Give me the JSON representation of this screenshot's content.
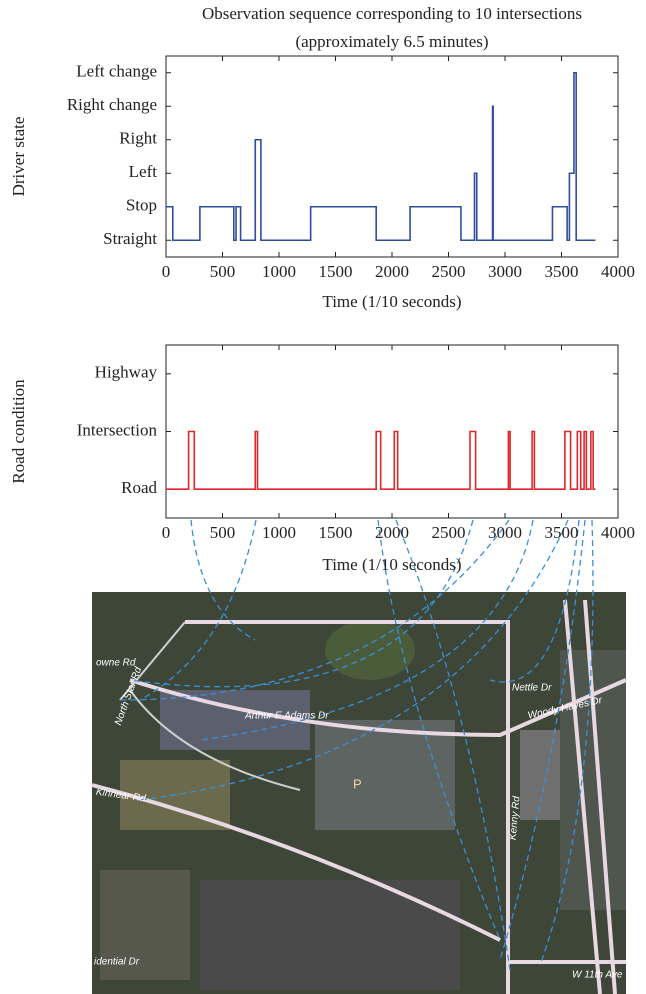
{
  "chart_data": [
    {
      "type": "line",
      "title": "Observation sequence corresponding to 10 intersections (approximately 6.5 minutes)",
      "x_label": "Time (1/10 seconds)",
      "y_label": "Driver state",
      "xlim": [
        0,
        4000
      ],
      "xticks": [
        0,
        500,
        1000,
        1500,
        2000,
        2500,
        3000,
        3500,
        4000
      ],
      "ylim": [
        0.5,
        6.5
      ],
      "yticks": [
        {
          "value": 1,
          "label": "Straight"
        },
        {
          "value": 2,
          "label": "Stop"
        },
        {
          "value": 3,
          "label": "Left"
        },
        {
          "value": 4,
          "label": "Right"
        },
        {
          "value": 5,
          "label": "Right change"
        },
        {
          "value": 6,
          "label": "Left change"
        }
      ],
      "series": [
        {
          "color": "#2e4d9e",
          "x": [
            0,
            60,
            60,
            300,
            300,
            600,
            600,
            620,
            620,
            660,
            660,
            790,
            790,
            840,
            840,
            1280,
            1280,
            1860,
            1860,
            2160,
            2160,
            2610,
            2610,
            2730,
            2730,
            2750,
            2750,
            2890,
            2890,
            2895,
            2895,
            3420,
            3420,
            3550,
            3550,
            3570,
            3570,
            3610,
            3610,
            3630,
            3630,
            3800
          ],
          "values": [
            2,
            2,
            1,
            1,
            2,
            2,
            1,
            1,
            2,
            2,
            1,
            1,
            4,
            4,
            1,
            1,
            2,
            2,
            1,
            1,
            2,
            2,
            1,
            1,
            3,
            3,
            1,
            1,
            5,
            5,
            1,
            1,
            2,
            2,
            1,
            1,
            3,
            3,
            6,
            6,
            1,
            1
          ]
        }
      ]
    },
    {
      "type": "line",
      "x_label": "Time (1/10 seconds)",
      "y_label": "Road condition",
      "xlim": [
        0,
        4000
      ],
      "xticks": [
        0,
        500,
        1000,
        1500,
        2000,
        2500,
        3000,
        3500,
        4000
      ],
      "ylim": [
        0.5,
        3.5
      ],
      "yticks": [
        {
          "value": 1,
          "label": "Road"
        },
        {
          "value": 2,
          "label": "Intersection"
        },
        {
          "value": 3,
          "label": "Highway"
        }
      ],
      "series": [
        {
          "color": "#e0262b",
          "x": [
            0,
            200,
            200,
            250,
            250,
            790,
            790,
            810,
            810,
            1860,
            1860,
            1900,
            1900,
            2020,
            2020,
            2050,
            2050,
            2690,
            2690,
            2740,
            2740,
            3030,
            3030,
            3045,
            3045,
            3240,
            3240,
            3260,
            3260,
            3530,
            3530,
            3580,
            3580,
            3640,
            3640,
            3670,
            3670,
            3700,
            3700,
            3720,
            3720,
            3760,
            3760,
            3780,
            3780,
            3800
          ],
          "values": [
            1,
            1,
            2,
            2,
            1,
            1,
            2,
            2,
            1,
            1,
            2,
            2,
            1,
            1,
            2,
            2,
            1,
            1,
            2,
            2,
            1,
            1,
            2,
            2,
            1,
            1,
            2,
            2,
            1,
            1,
            2,
            2,
            1,
            1,
            2,
            2,
            1,
            1,
            2,
            2,
            1,
            1,
            2,
            2,
            1,
            1
          ]
        }
      ]
    }
  ],
  "map": {
    "labels": [
      "owne Rd",
      "North Star Rd",
      "Arthur E Adams Dr",
      "Nettle Dr",
      "Woody Hayes Dr",
      "Kinnear Rd",
      "Kenny Rd",
      "W 11th Ave",
      "idential Dr",
      "P"
    ]
  }
}
